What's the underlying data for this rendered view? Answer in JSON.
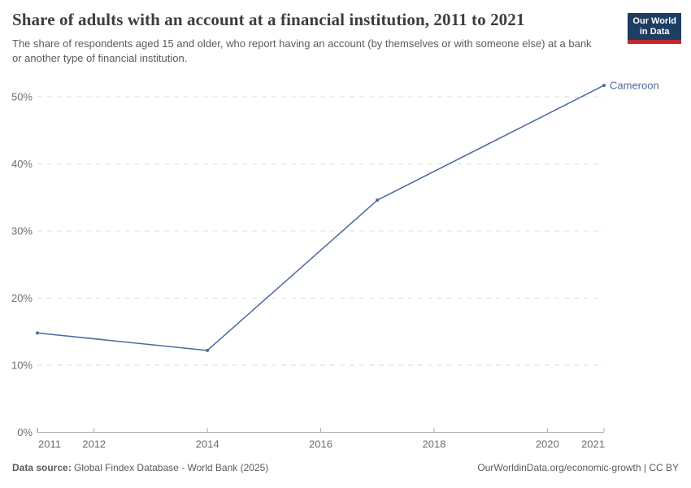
{
  "header": {
    "title": "Share of adults with an account at a financial institution, 2011 to 2021",
    "subtitle": "The share of respondents aged 15 and older, who report having an account (by themselves or with someone else) at a bank or another type of financial institution.",
    "logo": {
      "line1": "Our World",
      "line2": "in Data"
    }
  },
  "chart_data": {
    "type": "line",
    "title": "Share of adults with an account at a financial institution, 2011 to 2021",
    "x": [
      2011,
      2014,
      2017,
      2021
    ],
    "series": [
      {
        "name": "Cameroon",
        "color": "#4c6a9c",
        "values": [
          14.8,
          12.2,
          34.6,
          51.7
        ]
      }
    ],
    "xlabel": "",
    "ylabel": "",
    "xlim": [
      2011,
      2021
    ],
    "ylim": [
      0,
      52
    ],
    "x_ticks": [
      2011,
      2012,
      2014,
      2016,
      2018,
      2020,
      2021
    ],
    "y_ticks": [
      0,
      10,
      20,
      30,
      40,
      50
    ],
    "y_tick_suffix": "%",
    "grid": "horizontal-dashed",
    "legend_position": "end-of-line-label"
  },
  "footer": {
    "source_label": "Data source:",
    "source_text": "Global Findex Database - World Bank (2025)",
    "credit": "OurWorldinData.org/economic-growth | CC BY"
  },
  "colors": {
    "series": "#4c6a9c",
    "grid": "#dddddd",
    "axis": "#a8a8a8",
    "tick_label": "#6e6e6e",
    "background": "#ffffff"
  }
}
